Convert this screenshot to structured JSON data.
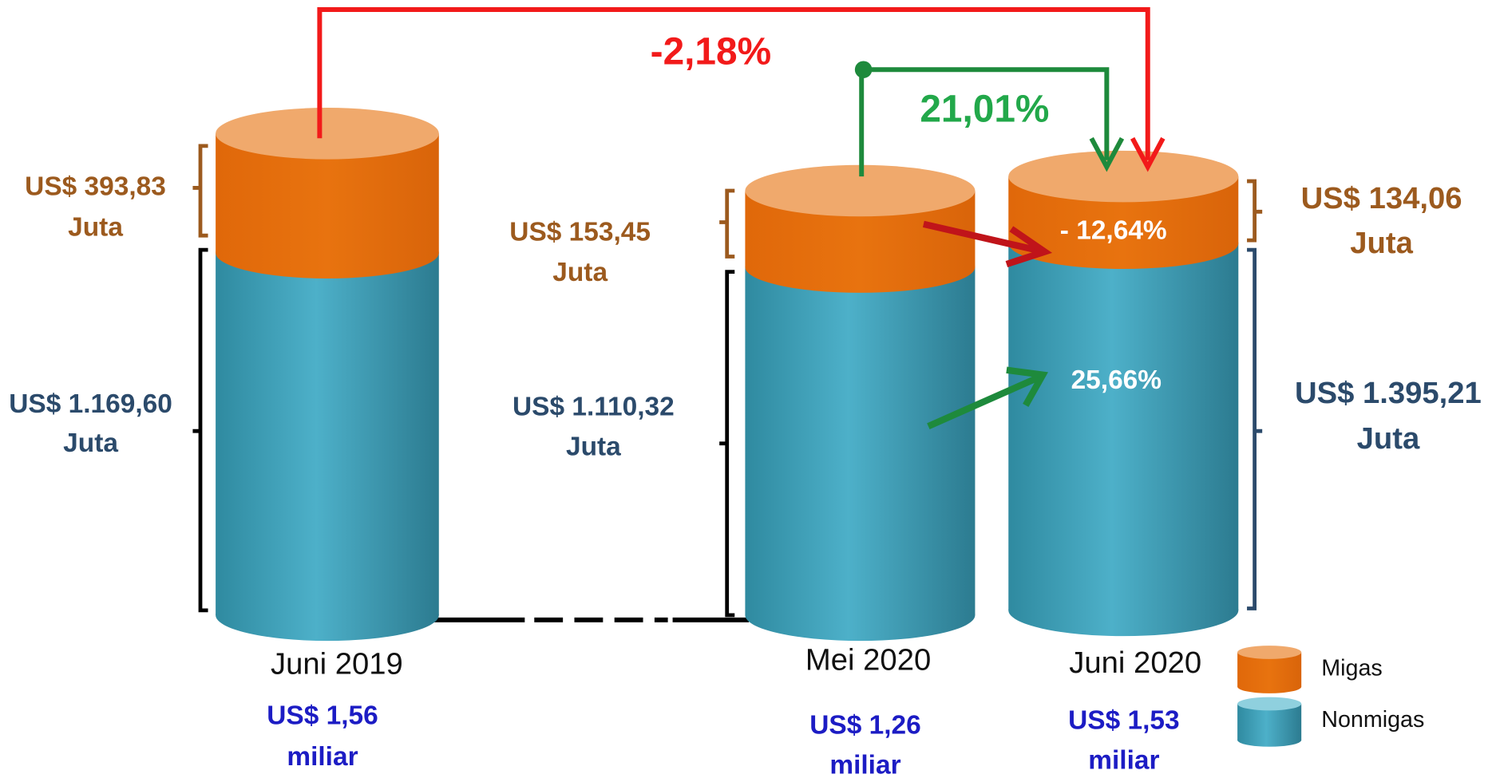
{
  "columns": [
    {
      "label": "Juni 2019",
      "total": "US$ 1,56",
      "total_unit": "miliar",
      "migas": "US$ 393,83",
      "migas_unit": "Juta",
      "nonmigas": "US$ 1.169,60",
      "nonmigas_unit": "Juta"
    },
    {
      "label": "Mei 2020",
      "total": "US$ 1,26",
      "total_unit": "miliar",
      "migas": "US$ 153,45",
      "migas_unit": "Juta",
      "nonmigas": "US$ 1.110,32",
      "nonmigas_unit": "Juta"
    },
    {
      "label": "Juni 2020",
      "total": "US$ 1,53",
      "total_unit": "miliar",
      "migas": "US$ 134,06",
      "migas_unit": "Juta",
      "nonmigas": "US$ 1.395,21",
      "nonmigas_unit": "Juta"
    }
  ],
  "changes": {
    "total_yoy": "-2,18%",
    "total_mom": "21,01%",
    "migas_mom": "- 12,64%",
    "nonmigas_mom": "25,66%"
  },
  "legend": [
    "Migas",
    "Nonmigas"
  ]
}
